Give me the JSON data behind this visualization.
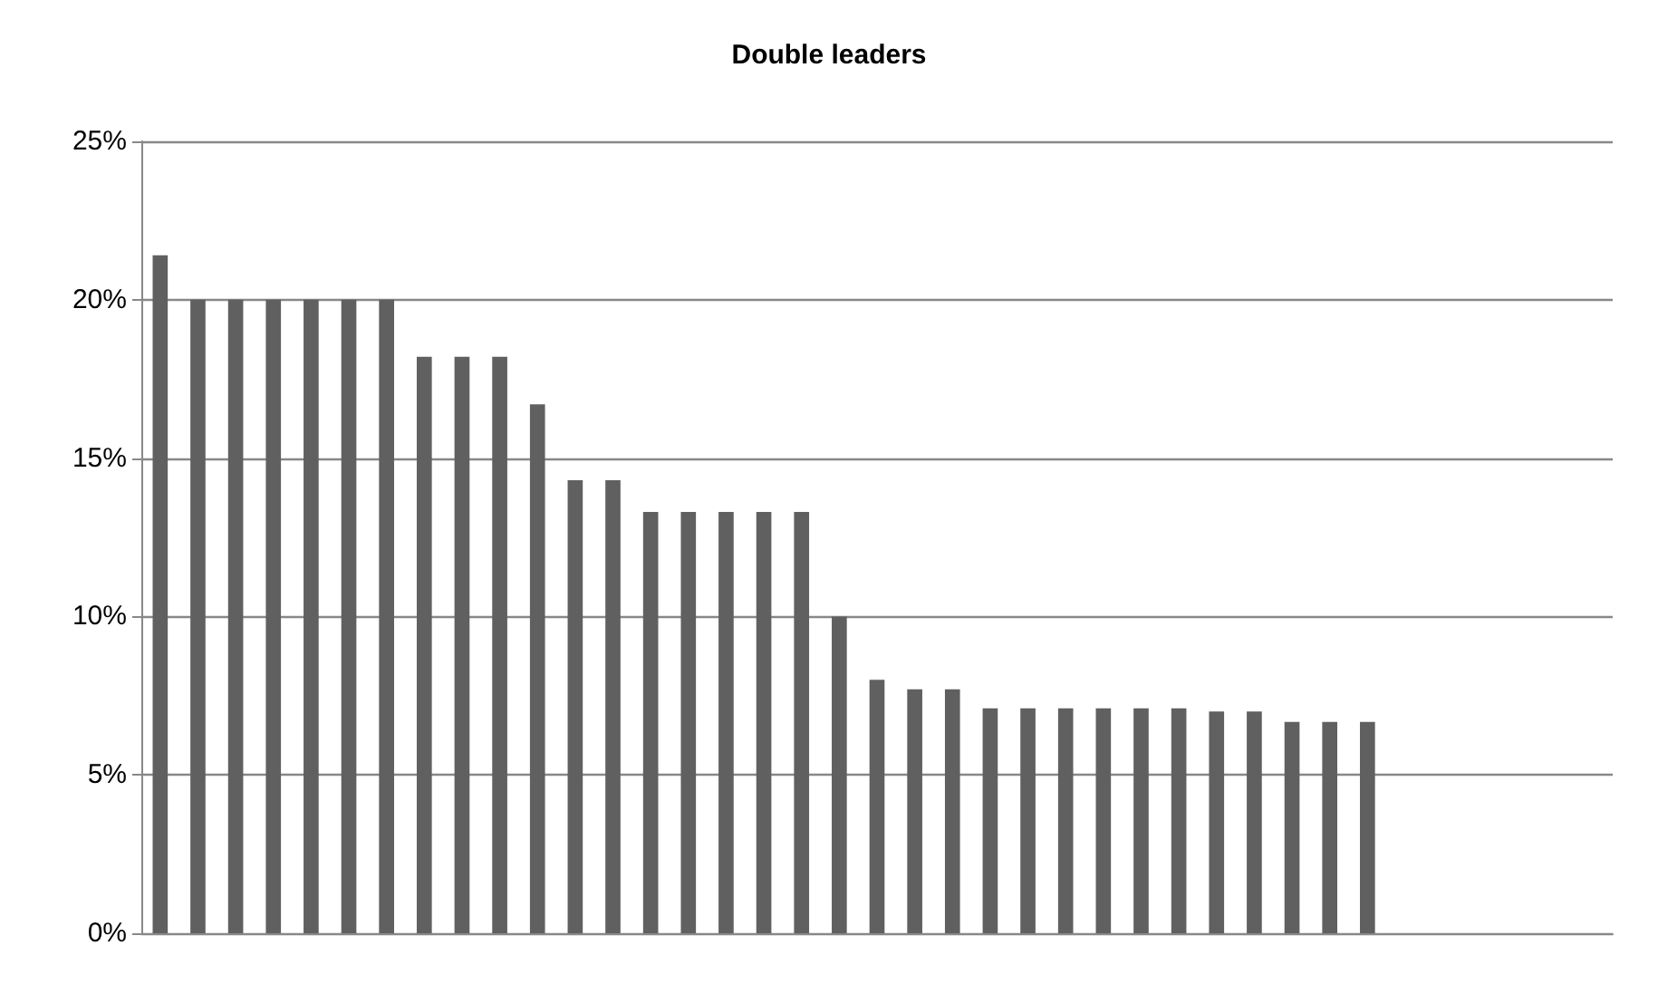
{
  "chart_data": {
    "type": "bar",
    "title": "Double leaders",
    "categories": [
      null,
      null,
      null,
      null,
      null,
      null,
      null,
      null,
      null,
      null,
      null,
      null,
      null,
      null,
      null,
      null,
      null,
      null,
      null,
      null,
      null,
      null,
      null,
      null,
      null,
      null,
      null,
      null,
      null,
      null,
      null,
      null,
      null,
      null,
      null,
      null,
      null,
      null,
      null
    ],
    "values": [
      21.4,
      20,
      20,
      20,
      20,
      20,
      20,
      18.2,
      18.2,
      18.2,
      16.7,
      14.3,
      14.3,
      13.3,
      13.3,
      13.3,
      13.3,
      13.3,
      10,
      8,
      7.7,
      7.7,
      7.1,
      7.1,
      7.1,
      7.1,
      7.1,
      7.1,
      7,
      7,
      6.67,
      6.67,
      6.67,
      null,
      null,
      null,
      null,
      null,
      null
    ],
    "color": "#606060",
    "ylim": [
      0,
      25
    ],
    "yticks": [
      {
        "value": 0,
        "label": "0%"
      },
      {
        "value": 5,
        "label": "5%"
      },
      {
        "value": 10,
        "label": "10%"
      },
      {
        "value": 15,
        "label": "15%"
      },
      {
        "value": 20,
        "label": "20%"
      },
      {
        "value": 25,
        "label": "25%"
      }
    ],
    "grid": "y",
    "tick_labels": "y"
  }
}
